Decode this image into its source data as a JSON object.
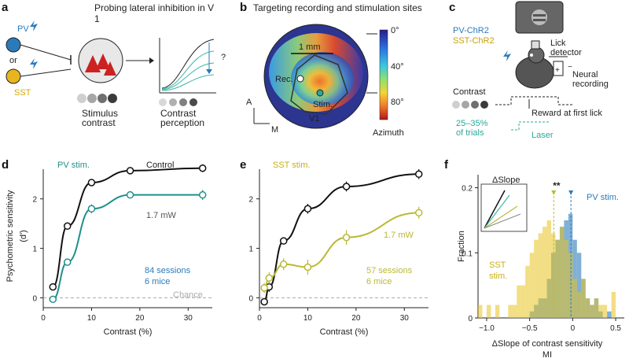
{
  "colors": {
    "pv": "#2b7bba",
    "sst": "#e8c21f",
    "pv_curve": "#1f8f8a",
    "sst_curve": "#b9b934",
    "control": "#111111",
    "teal": "#3fb5a6",
    "laser": "#2aa89a"
  },
  "panel_a": {
    "label": "a",
    "title": "Probing lateral inhibition in V1",
    "pv": "PV",
    "or": "or",
    "sst": "SST",
    "stim_label": "Stimulus contrast",
    "perc_label": "Contrast perception",
    "question": "?"
  },
  "panel_b": {
    "label": "b",
    "title": "Targeting recording and stimulation sites",
    "scale": "1 mm",
    "rec": "Rec.",
    "stim": "Stim.",
    "v1": "V1",
    "axis_a": "A",
    "axis_m": "M",
    "colorbar_ticks": [
      "0°",
      "40°",
      "80°"
    ],
    "colorbar_label": "Azimuth"
  },
  "panel_c": {
    "label": "c",
    "pv_chr2": "PV-ChR2",
    "sst_chr2": "SST-ChR2",
    "lick": "Lick detector",
    "neural": "Neural recording",
    "contrast": "Contrast",
    "reward": "Reward at first lick",
    "trials": "25–35% of trials",
    "laser": "Laser",
    "minus": "−",
    "plus": "+"
  },
  "chart_data": [
    {
      "panel": "d",
      "type": "line",
      "xlabel": "Contrast (%)",
      "ylabel": "Psychometric sensitivity (d′)",
      "xlim": [
        0,
        35
      ],
      "ylim": [
        -0.2,
        2.6
      ],
      "xticks": [
        "0",
        "10",
        "20",
        "30"
      ],
      "yticks": [
        "0",
        "1",
        "2"
      ],
      "series": [
        {
          "name": "Control",
          "x": [
            2,
            5,
            10,
            18,
            33
          ],
          "y": [
            0.22,
            1.45,
            2.33,
            2.57,
            2.62
          ],
          "err": [
            0.05,
            0.05,
            0.06,
            0.05,
            0.08
          ]
        },
        {
          "name": "PV stim.",
          "x": [
            2,
            5,
            10,
            18,
            33
          ],
          "y": [
            -0.03,
            0.72,
            1.8,
            2.08,
            2.08
          ],
          "err": [
            0.05,
            0.06,
            0.09,
            0.07,
            0.1
          ]
        }
      ],
      "annotations": {
        "power": "1.7 mW",
        "sessions": "84 sessions",
        "mice": "6 mice",
        "chance": "Chance",
        "control": "Control",
        "stim": "PV stim."
      }
    },
    {
      "panel": "e",
      "type": "line",
      "xlabel": "Contrast (%)",
      "xlim": [
        0,
        35
      ],
      "ylim": [
        -0.2,
        2.6
      ],
      "xticks": [
        "0",
        "10",
        "20",
        "30"
      ],
      "yticks": [
        "0",
        "1",
        "2"
      ],
      "series": [
        {
          "name": "Control",
          "x": [
            1,
            2,
            5,
            10,
            18,
            33
          ],
          "y": [
            -0.08,
            0.22,
            1.15,
            1.8,
            2.25,
            2.5
          ],
          "err": [
            0.06,
            0.1,
            0.07,
            0.1,
            0.1,
            0.1
          ]
        },
        {
          "name": "SST stim.",
          "x": [
            1,
            2,
            5,
            10,
            18,
            33
          ],
          "y": [
            0.2,
            0.4,
            0.68,
            0.62,
            1.22,
            1.72
          ],
          "err": [
            0.1,
            0.12,
            0.12,
            0.15,
            0.15,
            0.12
          ]
        }
      ],
      "annotations": {
        "power": "1.7 mW",
        "sessions": "57 sessions",
        "mice": "6 mice",
        "stim": "SST stim."
      }
    },
    {
      "panel": "f",
      "type": "bar",
      "xlabel": "ΔSlope of contrast sensitivity",
      "xlabel2": "MI",
      "ylabel": "Fraction",
      "xlim": [
        -1.1,
        0.6
      ],
      "ylim": [
        0,
        0.22
      ],
      "xticks": [
        "−1.0",
        "−0.5",
        "0",
        "0.5"
      ],
      "yticks": [
        "0",
        "0.1",
        "0.2"
      ],
      "bin_width": 0.05,
      "bin_starts": [
        -1.1,
        -1.05,
        -1.0,
        -0.95,
        -0.9,
        -0.85,
        -0.8,
        -0.75,
        -0.7,
        -0.65,
        -0.6,
        -0.55,
        -0.5,
        -0.45,
        -0.4,
        -0.35,
        -0.3,
        -0.25,
        -0.2,
        -0.15,
        -0.1,
        -0.05,
        0.0,
        0.05,
        0.1,
        0.15,
        0.2,
        0.25,
        0.3,
        0.35,
        0.4,
        0.45,
        0.5
      ],
      "series": [
        {
          "name": "PV stim.",
          "values": [
            0,
            0,
            0,
            0,
            0,
            0,
            0,
            0,
            0,
            0,
            0,
            0,
            0.01,
            0.02,
            0.03,
            0.03,
            0.06,
            0.1,
            0.12,
            0.14,
            0.15,
            0.16,
            0.12,
            0.1,
            0.06,
            0.03,
            0.02,
            0.03,
            0.01,
            0,
            0.01,
            0,
            0
          ]
        },
        {
          "name": "SST stim.",
          "values": [
            0.02,
            0.0,
            0.02,
            0.0,
            0.02,
            0.0,
            0.0,
            0.02,
            0.02,
            0.05,
            0.05,
            0.08,
            0.1,
            0.12,
            0.13,
            0.14,
            0.15,
            0.13,
            0.12,
            0.14,
            0.12,
            0.1,
            0.06,
            0.04,
            0.06,
            0.03,
            0.02,
            0.03,
            0.02,
            0.02,
            0.0,
            0.04,
            0.0
          ]
        }
      ],
      "means": {
        "sst": -0.22,
        "pv": -0.02
      },
      "annotations": {
        "delta_slope": "ΔSlope",
        "sig": "**",
        "pv": "PV stim.",
        "sst1": "SST",
        "sst2": "stim."
      }
    }
  ],
  "labels": {
    "d": "d",
    "e": "e",
    "f": "f",
    "dprime": "(d′)"
  }
}
